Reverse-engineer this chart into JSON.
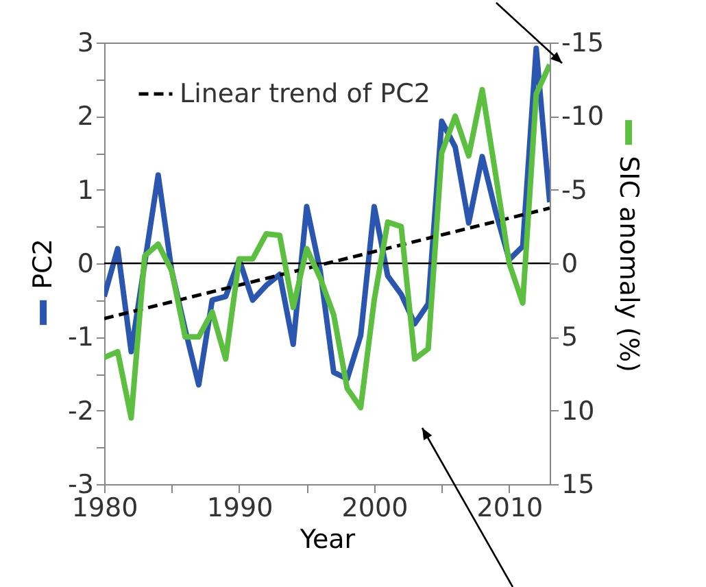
{
  "chart_data": {
    "type": "line",
    "xlabel": "Year",
    "ylabel": "PC2",
    "y2label": "SIC anomaly (%)",
    "x": [
      1980,
      1981,
      1982,
      1983,
      1984,
      1985,
      1986,
      1987,
      1988,
      1989,
      1990,
      1991,
      1992,
      1993,
      1994,
      1995,
      1996,
      1997,
      1998,
      1999,
      2000,
      2001,
      2002,
      2003,
      2004,
      2005,
      2006,
      2007,
      2008,
      2009,
      2010,
      2011,
      2012,
      2013
    ],
    "series": [
      {
        "color": "#5cbf40",
        "axis": "y2",
        "values": [
          6.4,
          6,
          10.5,
          -0.5,
          -1.3,
          0.5,
          5,
          5,
          3.3,
          6.5,
          -0.3,
          -0.3,
          -2,
          -1.9,
          3,
          -1,
          1,
          3.5,
          8.5,
          9.8,
          2.5,
          -2.8,
          -2.5,
          6.5,
          5.8,
          -7.5,
          -10,
          -7.3,
          -11.8,
          -6,
          0,
          2.7,
          -11.5,
          -13.5
        ]
      },
      {
        "color": "#2a56b0",
        "values": [
          -0.45,
          0.2,
          -1.2,
          0,
          1.2,
          -0.1,
          -0.9,
          -1.65,
          -0.5,
          -0.45,
          0.05,
          -0.5,
          -0.3,
          -0.15,
          -1.1,
          0.77,
          -0.1,
          -1.48,
          -1.57,
          -0.98,
          0.77,
          -0.17,
          -0.42,
          -0.82,
          -0.55,
          1.93,
          1.58,
          0.55,
          1.45,
          0.7,
          0.05,
          0.23,
          2.92,
          0.83
        ]
      },
      {
        "name": "Linear trend of PC2",
        "color": "#000000",
        "line_style": "dashed",
        "x": [
          1980,
          2013
        ],
        "values": [
          -0.75,
          0.75
        ]
      }
    ],
    "xlim": [
      1980,
      2013
    ],
    "xticks": [
      1980,
      {
        "value": 1985,
        "label": null
      },
      1990,
      {
        "value": 1995,
        "label": null
      },
      2000,
      {
        "value": 2005,
        "label": null
      },
      2010
    ],
    "ylim": [
      -3,
      3
    ],
    "yticks": [
      -3,
      {
        "value": -2.5,
        "label": null
      },
      -2,
      {
        "value": -1.5,
        "label": null
      },
      -1,
      {
        "value": -0.5,
        "label": null
      },
      0,
      {
        "value": 0.5,
        "label": null
      },
      1,
      {
        "value": 1.5,
        "label": null
      },
      2,
      {
        "value": 2.5,
        "label": null
      },
      3
    ],
    "y2lim": [
      15,
      -15
    ],
    "y2ticks": [
      15,
      10,
      5,
      0,
      -5,
      -10,
      -15
    ],
    "ref_lines": [
      {
        "axis": "y",
        "value": 0,
        "color": "#000000"
      }
    ],
    "legend": "top left",
    "grid": false
  }
}
